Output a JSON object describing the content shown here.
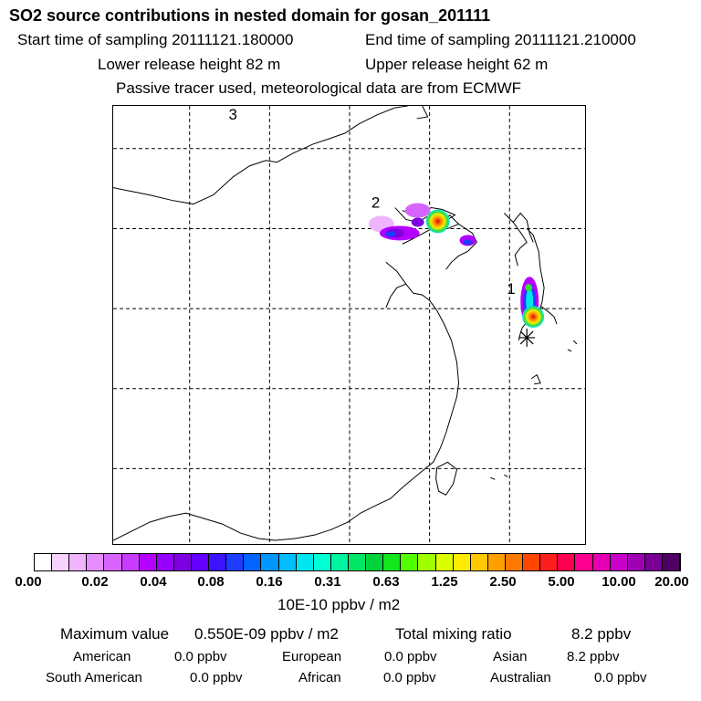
{
  "header": {
    "title": "SO2 source contributions in nested domain for gosan_201111",
    "start_time": "Start time of sampling 20111121.180000",
    "end_time": "End time of sampling 20111121.210000",
    "lower_height": "Lower release height   82 m",
    "upper_height": "Upper release height   62 m",
    "tracer_note": "Passive tracer used, meteorological data are from ECMWF"
  },
  "map": {
    "source_labels": [
      "1",
      "2",
      "3"
    ],
    "plume_colors": {
      "violet": "#b400ff",
      "purple": "#7d00e0",
      "blue": "#1e3cff",
      "cyan": "#00e6e6",
      "green": "#3cdc3c",
      "yellow": "#f0f000",
      "orange": "#ff9600",
      "red": "#e60000"
    }
  },
  "colorbar": {
    "colors": [
      "#ffffff",
      "#f6d2ff",
      "#f0b4ff",
      "#e68cff",
      "#d764ff",
      "#c83cff",
      "#b400ff",
      "#9600ff",
      "#7d00e0",
      "#6400ff",
      "#3c14ff",
      "#1e3cff",
      "#0064ff",
      "#0096ff",
      "#00beff",
      "#00e6f0",
      "#00ffd2",
      "#00f5a0",
      "#00e664",
      "#00d23c",
      "#14e61e",
      "#50ff00",
      "#a0ff00",
      "#dcff00",
      "#ffeb00",
      "#ffc800",
      "#ffa000",
      "#ff7800",
      "#ff4600",
      "#ff1e1e",
      "#ff0050",
      "#ff0090",
      "#e600b4",
      "#c800c8",
      "#a000b4",
      "#780096",
      "#500064"
    ],
    "tick_labels": [
      "0.00",
      "0.02",
      "0.04",
      "0.08",
      "0.16",
      "0.31",
      "0.63",
      "1.25",
      "2.50",
      "5.00",
      "10.00",
      "20.00"
    ],
    "unit": "10E-10 ppbv / m2"
  },
  "summary": {
    "max_label": "Maximum value",
    "max_value": "0.550E-09 ppbv / m2",
    "total_label": "Total mixing ratio",
    "total_value": "8.2 ppbv",
    "regions": [
      {
        "name": "American",
        "value": "0.0 ppbv"
      },
      {
        "name": "European",
        "value": "0.0 ppbv"
      },
      {
        "name": "Asian",
        "value": "8.2 ppbv"
      },
      {
        "name": "South American",
        "value": "0.0 ppbv"
      },
      {
        "name": "African",
        "value": "0.0 ppbv"
      },
      {
        "name": "Australian",
        "value": "0.0 ppbv"
      }
    ]
  }
}
